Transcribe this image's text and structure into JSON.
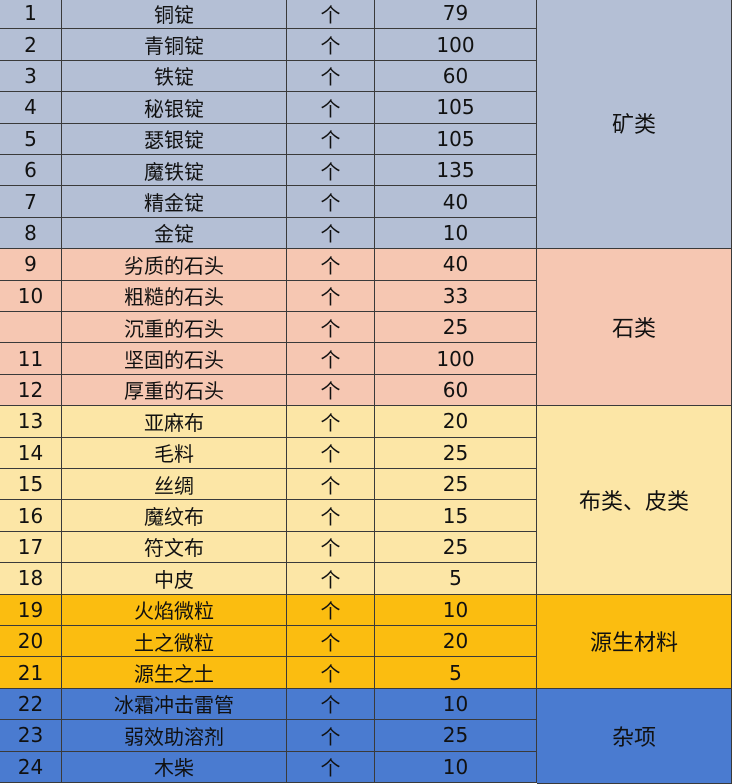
{
  "groups": [
    {
      "label": "矿类",
      "color": "#b4bfd5",
      "rows": [
        {
          "index": 1,
          "name": "铜锭",
          "unit": "个",
          "value": 79
        },
        {
          "index": 2,
          "name": "青铜锭",
          "unit": "个",
          "value": 100
        },
        {
          "index": 3,
          "name": "铁锭",
          "unit": "个",
          "value": 60
        },
        {
          "index": 4,
          "name": "秘银锭",
          "unit": "个",
          "value": 105
        },
        {
          "index": 5,
          "name": "瑟银锭",
          "unit": "个",
          "value": 105
        },
        {
          "index": 6,
          "name": "魔铁锭",
          "unit": "个",
          "value": 135
        },
        {
          "index": 7,
          "name": "精金锭",
          "unit": "个",
          "value": 40
        },
        {
          "index": 8,
          "name": "金锭",
          "unit": "个",
          "value": 10
        }
      ]
    },
    {
      "label": "石类",
      "color": "#f6c7b2",
      "rows": [
        {
          "index": 9,
          "name": "劣质的石头",
          "unit": "个",
          "value": 40
        },
        {
          "index": 10,
          "name": "粗糙的石头",
          "unit": "个",
          "value": 33
        },
        {
          "index": null,
          "name": "沉重的石头",
          "unit": "个",
          "value": 25
        },
        {
          "index": 11,
          "name": "坚固的石头",
          "unit": "个",
          "value": 100
        },
        {
          "index": 12,
          "name": "厚重的石头",
          "unit": "个",
          "value": 60
        }
      ]
    },
    {
      "label": "布类、皮类",
      "color": "#fce6a6",
      "rows": [
        {
          "index": 13,
          "name": "亚麻布",
          "unit": "个",
          "value": 20
        },
        {
          "index": 14,
          "name": "毛料",
          "unit": "个",
          "value": 25
        },
        {
          "index": 15,
          "name": "丝绸",
          "unit": "个",
          "value": 25
        },
        {
          "index": 16,
          "name": "魔纹布",
          "unit": "个",
          "value": 15
        },
        {
          "index": 17,
          "name": "符文布",
          "unit": "个",
          "value": 25
        },
        {
          "index": 18,
          "name": "中皮",
          "unit": "个",
          "value": 5
        }
      ]
    },
    {
      "label": "源生材料",
      "color": "#fbbd10",
      "rows": [
        {
          "index": 19,
          "name": "火焰微粒",
          "unit": "个",
          "value": 10
        },
        {
          "index": 20,
          "name": "土之微粒",
          "unit": "个",
          "value": 20
        },
        {
          "index": 21,
          "name": "源生之土",
          "unit": "个",
          "value": 5
        }
      ]
    },
    {
      "label": "杂项",
      "color": "#4a7bd0",
      "rows": [
        {
          "index": 22,
          "name": "冰霜冲击雷管",
          "unit": "个",
          "value": 10
        },
        {
          "index": 23,
          "name": "弱效助溶剂",
          "unit": "个",
          "value": 25
        },
        {
          "index": 24,
          "name": "木柴",
          "unit": "个",
          "value": 10
        }
      ]
    }
  ]
}
